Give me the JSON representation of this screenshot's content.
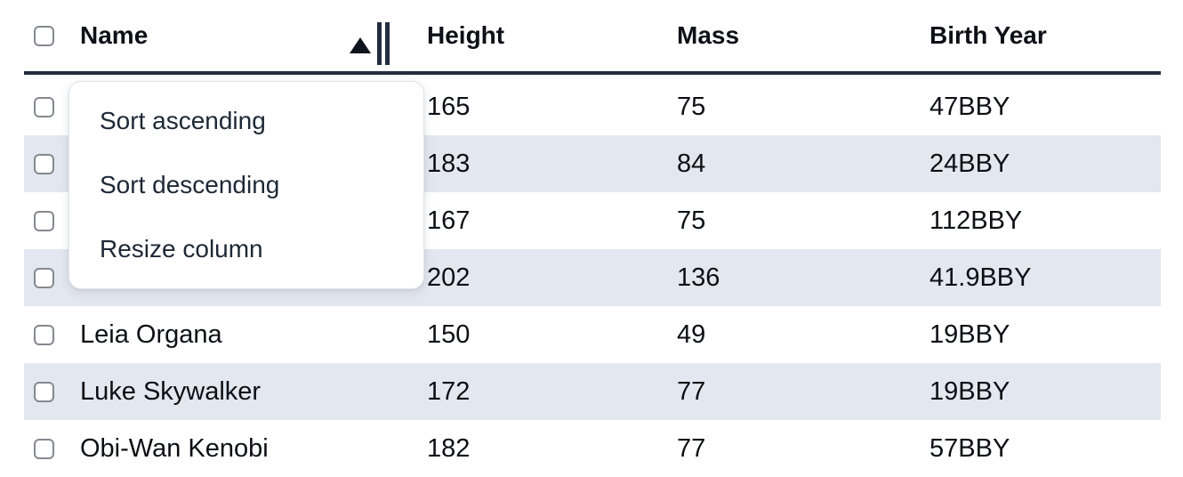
{
  "table": {
    "columns": [
      "Name",
      "Height",
      "Mass",
      "Birth Year"
    ],
    "sort_indicator": {
      "column": "Name",
      "direction": "ascending"
    },
    "select_all_checked": false,
    "rows": [
      {
        "name": "",
        "height": "165",
        "mass": "75",
        "birth_year": "47BBY",
        "checked": false
      },
      {
        "name": "",
        "height": "183",
        "mass": "84",
        "birth_year": "24BBY",
        "checked": false
      },
      {
        "name": "",
        "height": "167",
        "mass": "75",
        "birth_year": "112BBY",
        "checked": false
      },
      {
        "name": "",
        "height": "202",
        "mass": "136",
        "birth_year": "41.9BBY",
        "checked": false
      },
      {
        "name": "Leia Organa",
        "height": "150",
        "mass": "49",
        "birth_year": "19BBY",
        "checked": false
      },
      {
        "name": "Luke Skywalker",
        "height": "172",
        "mass": "77",
        "birth_year": "19BBY",
        "checked": false
      },
      {
        "name": "Obi-Wan Kenobi",
        "height": "182",
        "mass": "77",
        "birth_year": "57BBY",
        "checked": false
      }
    ]
  },
  "context_menu": {
    "items": [
      "Sort ascending",
      "Sort descending",
      "Resize column"
    ]
  },
  "colors": {
    "stripe": "#e3e7ef",
    "header_border": "#222c3e",
    "text": "#0c0f14",
    "menu_text": "#1e2836",
    "checkbox_border": "#84898f"
  }
}
